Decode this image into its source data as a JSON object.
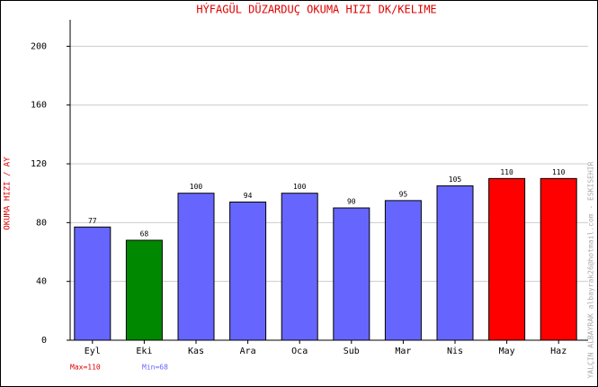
{
  "chart_data": {
    "type": "bar",
    "title": "HÝFAGÜL DÜZARDUÇ   OKUMA HIZI  DK/KELIME",
    "y_label": "OKUMA HIZI / AY",
    "side_note": "YALÇIN ALBAYRAK  albayrak26@hotmail.com - ESKISEHIR",
    "max_label": "Max=110",
    "min_label": "Min=68",
    "categories": [
      "Eyl",
      "Eki",
      "Kas",
      "Ara",
      "Oca",
      "Sub",
      "Mar",
      "Nis",
      "May",
      "Haz"
    ],
    "values": [
      77,
      68,
      100,
      94,
      100,
      90,
      95,
      105,
      110,
      110
    ],
    "colors": [
      "#6666ff",
      "#008800",
      "#6666ff",
      "#6666ff",
      "#6666ff",
      "#6666ff",
      "#6666ff",
      "#6666ff",
      "#ff0000",
      "#ff0000"
    ],
    "ylim": [
      0,
      218
    ],
    "yticks": [
      0,
      40,
      80,
      120,
      160,
      200
    ],
    "grid": true
  }
}
